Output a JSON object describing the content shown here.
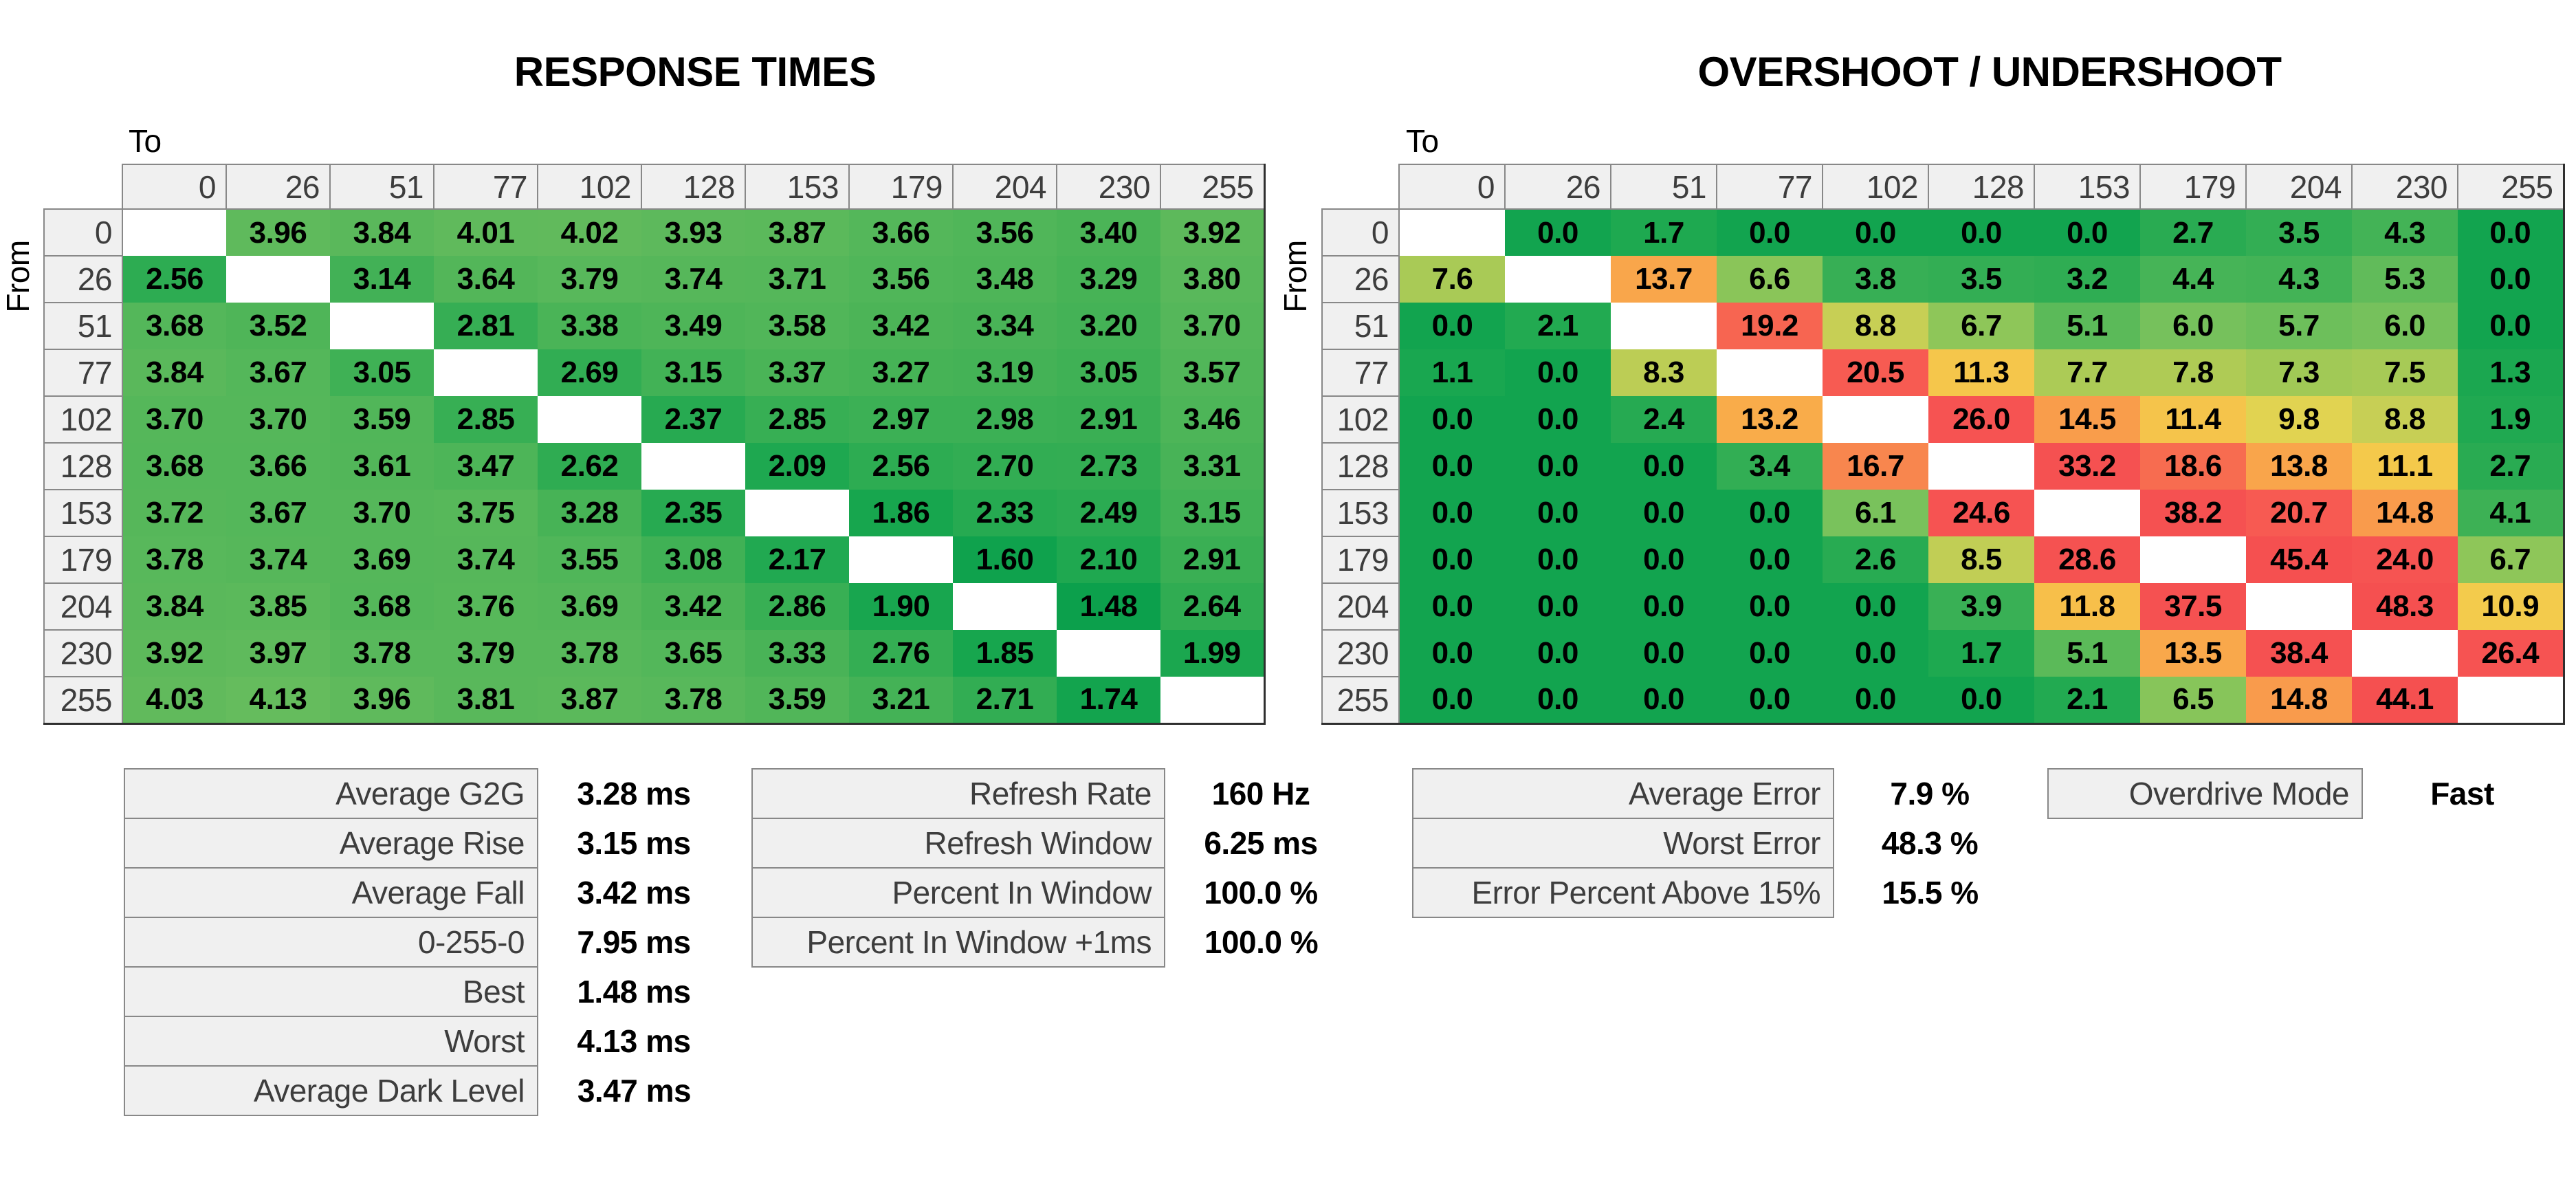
{
  "chart_data": [
    {
      "type": "heatmap",
      "title": "RESPONSE TIMES",
      "x_axis_label": "To",
      "y_axis_label": "From",
      "unit": "ms",
      "decimals": 2,
      "categories": [
        0,
        26,
        51,
        77,
        102,
        128,
        153,
        179,
        204,
        230,
        255
      ],
      "values": [
        [
          null,
          3.96,
          3.84,
          4.01,
          4.02,
          3.93,
          3.87,
          3.66,
          3.56,
          3.4,
          3.92
        ],
        [
          2.56,
          null,
          3.14,
          3.64,
          3.79,
          3.74,
          3.71,
          3.56,
          3.48,
          3.29,
          3.8
        ],
        [
          3.68,
          3.52,
          null,
          2.81,
          3.38,
          3.49,
          3.58,
          3.42,
          3.34,
          3.2,
          3.7
        ],
        [
          3.84,
          3.67,
          3.05,
          null,
          2.69,
          3.15,
          3.37,
          3.27,
          3.19,
          3.05,
          3.57
        ],
        [
          3.7,
          3.7,
          3.59,
          2.85,
          null,
          2.37,
          2.85,
          2.97,
          2.98,
          2.91,
          3.46
        ],
        [
          3.68,
          3.66,
          3.61,
          3.47,
          2.62,
          null,
          2.09,
          2.56,
          2.7,
          2.73,
          3.31
        ],
        [
          3.72,
          3.67,
          3.7,
          3.75,
          3.28,
          2.35,
          null,
          1.86,
          2.33,
          2.49,
          3.15
        ],
        [
          3.78,
          3.74,
          3.69,
          3.74,
          3.55,
          3.08,
          2.17,
          null,
          1.6,
          2.1,
          2.91
        ],
        [
          3.84,
          3.85,
          3.68,
          3.76,
          3.69,
          3.42,
          2.86,
          1.9,
          null,
          1.48,
          2.64
        ],
        [
          3.92,
          3.97,
          3.78,
          3.79,
          3.78,
          3.65,
          3.33,
          2.76,
          1.85,
          null,
          1.99
        ],
        [
          4.03,
          4.13,
          3.96,
          3.81,
          3.87,
          3.78,
          3.59,
          3.21,
          2.71,
          1.74,
          null
        ]
      ]
    },
    {
      "type": "heatmap",
      "title": "OVERSHOOT / UNDERSHOOT",
      "x_axis_label": "To",
      "y_axis_label": "From",
      "unit": "%",
      "decimals": 1,
      "categories": [
        0,
        26,
        51,
        77,
        102,
        128,
        153,
        179,
        204,
        230,
        255
      ],
      "values": [
        [
          null,
          0.0,
          1.7,
          0.0,
          0.0,
          0.0,
          0.0,
          2.7,
          3.5,
          4.3,
          0.0
        ],
        [
          7.6,
          null,
          13.7,
          6.6,
          3.8,
          3.5,
          3.2,
          4.4,
          4.3,
          5.3,
          0.0
        ],
        [
          0.0,
          2.1,
          null,
          19.2,
          8.8,
          6.7,
          5.1,
          6.0,
          5.7,
          6.0,
          0.0
        ],
        [
          1.1,
          0.0,
          8.3,
          null,
          20.5,
          11.3,
          7.7,
          7.8,
          7.3,
          7.5,
          1.3
        ],
        [
          0.0,
          0.0,
          2.4,
          13.2,
          null,
          26.0,
          14.5,
          11.4,
          9.8,
          8.8,
          1.9
        ],
        [
          0.0,
          0.0,
          0.0,
          3.4,
          16.7,
          null,
          33.2,
          18.6,
          13.8,
          11.1,
          2.7
        ],
        [
          0.0,
          0.0,
          0.0,
          0.0,
          6.1,
          24.6,
          null,
          38.2,
          20.7,
          14.8,
          4.1
        ],
        [
          0.0,
          0.0,
          0.0,
          0.0,
          2.6,
          8.5,
          28.6,
          null,
          45.4,
          24.0,
          6.7
        ],
        [
          0.0,
          0.0,
          0.0,
          0.0,
          0.0,
          3.9,
          11.8,
          37.5,
          null,
          48.3,
          10.9
        ],
        [
          0.0,
          0.0,
          0.0,
          0.0,
          0.0,
          1.7,
          5.1,
          13.5,
          38.4,
          null,
          26.4
        ],
        [
          0.0,
          0.0,
          0.0,
          0.0,
          0.0,
          0.0,
          2.1,
          6.5,
          14.8,
          44.1,
          null
        ]
      ]
    }
  ],
  "stats": {
    "left": [
      {
        "label": "Average G2G",
        "value": "3.28 ms"
      },
      {
        "label": "Average Rise",
        "value": "3.15 ms"
      },
      {
        "label": "Average Fall",
        "value": "3.42 ms"
      },
      {
        "label": "0-255-0",
        "value": "7.95 ms"
      },
      {
        "label": "Best",
        "value": "1.48 ms"
      },
      {
        "label": "Worst",
        "value": "4.13 ms"
      },
      {
        "label": "Average Dark Level",
        "value": "3.47 ms"
      }
    ],
    "middle": [
      {
        "label": "Refresh Rate",
        "value": "160 Hz"
      },
      {
        "label": "Refresh Window",
        "value": "6.25 ms"
      },
      {
        "label": "Percent In Window",
        "value": "100.0 %"
      },
      {
        "label": "Percent In Window +1ms",
        "value": "100.0 %"
      }
    ],
    "right": [
      {
        "label": "Average Error",
        "value": "7.9 %"
      },
      {
        "label": "Worst Error",
        "value": "48.3 %"
      },
      {
        "label": "Error Percent Above 15%",
        "value": "15.5 %"
      }
    ],
    "overdrive": {
      "label": "Overdrive Mode",
      "value": "Fast"
    }
  },
  "colors": {
    "header_bg": "#f0f0f0",
    "grid_border": "#888888",
    "dark_border": "#2f2f2f",
    "label_text": "#3d3d3d",
    "value_text": "#000000",
    "diagonal_cell": "#ffffff",
    "rt_scale": [
      [
        1.45,
        "#0ba04c"
      ],
      [
        1.8,
        "#15a54e"
      ],
      [
        2.2,
        "#22a951"
      ],
      [
        2.6,
        "#2eac52"
      ],
      [
        3.0,
        "#3db055"
      ],
      [
        3.4,
        "#4bb457"
      ],
      [
        3.7,
        "#55b75a"
      ],
      [
        4.0,
        "#60ba5c"
      ],
      [
        4.2,
        "#68bd5e"
      ]
    ],
    "err_scale": [
      [
        0,
        "#12a44f"
      ],
      [
        1.5,
        "#1ca850"
      ],
      [
        3,
        "#2cac53"
      ],
      [
        4,
        "#3ab055"
      ],
      [
        5,
        "#58b959"
      ],
      [
        6,
        "#76c15c"
      ],
      [
        7,
        "#98c857"
      ],
      [
        8,
        "#b5cc55"
      ],
      [
        9,
        "#ccd055"
      ],
      [
        10,
        "#e6d450"
      ],
      [
        11,
        "#f4ca4b"
      ],
      [
        12.5,
        "#f9b54a"
      ],
      [
        14,
        "#f9a24b"
      ],
      [
        15.5,
        "#f9944c"
      ],
      [
        17,
        "#f8834e"
      ],
      [
        18.5,
        "#f76d50"
      ],
      [
        20,
        "#f75c52"
      ],
      [
        23,
        "#f65452"
      ],
      [
        30,
        "#f55151"
      ],
      [
        50,
        "#f55050"
      ]
    ]
  }
}
